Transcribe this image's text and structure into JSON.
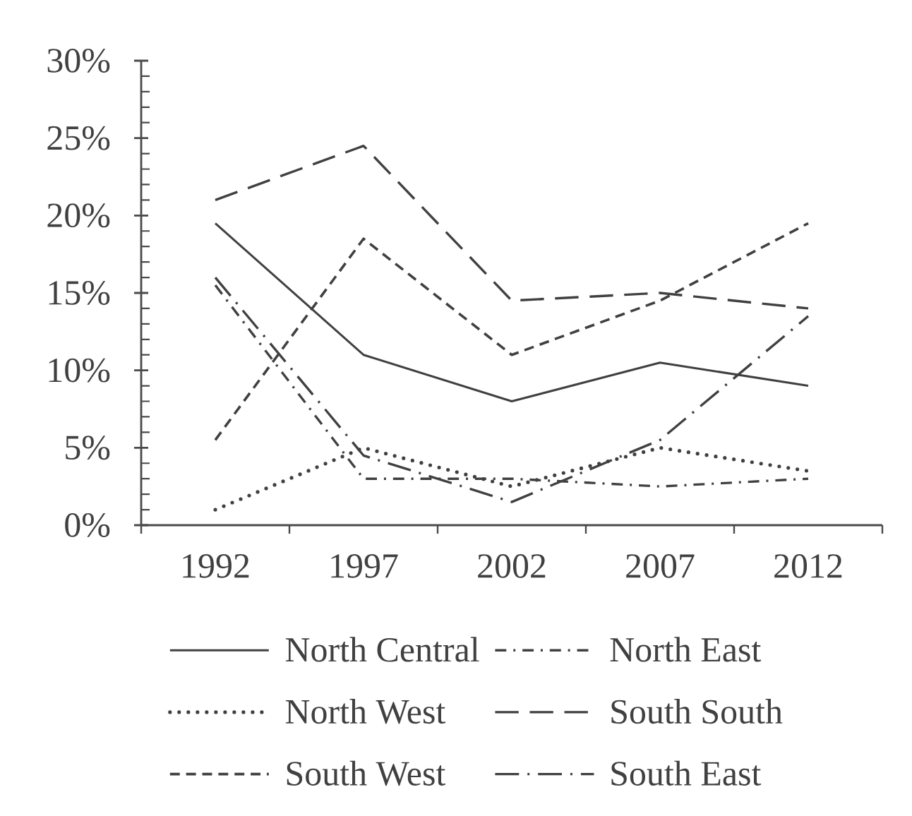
{
  "chart_data": {
    "type": "line",
    "categories": [
      "1992",
      "1997",
      "2002",
      "2007",
      "2012"
    ],
    "series": [
      {
        "name": "North Central",
        "color": "#404040",
        "line_style": "solid",
        "values": [
          19.5,
          11,
          8,
          10.5,
          9
        ]
      },
      {
        "name": "North East",
        "color": "#404040",
        "line_style": "dashdot",
        "values": [
          15.5,
          3,
          3,
          2.5,
          3
        ]
      },
      {
        "name": "North West",
        "color": "#404040",
        "line_style": "dotted",
        "values": [
          1,
          5,
          2.5,
          5,
          3.5
        ]
      },
      {
        "name": "South South",
        "color": "#404040",
        "line_style": "longdash",
        "values": [
          21,
          24.5,
          14.5,
          15,
          14
        ]
      },
      {
        "name": "South West",
        "color": "#404040",
        "line_style": "dashed",
        "values": [
          5.5,
          18.5,
          11,
          14.5,
          19.5
        ]
      },
      {
        "name": "South East",
        "color": "#404040",
        "line_style": "longdashdot",
        "values": [
          16,
          4.5,
          1.5,
          5.5,
          13.5
        ]
      }
    ],
    "ylim": [
      0,
      30
    ],
    "yticks": [
      {
        "value": 0,
        "label": "0%"
      },
      {
        "value": 1,
        "label": null
      },
      {
        "value": 2,
        "label": null
      },
      {
        "value": 3,
        "label": null
      },
      {
        "value": 4,
        "label": null
      },
      {
        "value": 5,
        "label": "5%"
      },
      {
        "value": 6,
        "label": null
      },
      {
        "value": 7,
        "label": null
      },
      {
        "value": 8,
        "label": null
      },
      {
        "value": 9,
        "label": null
      },
      {
        "value": 10,
        "label": "10%"
      },
      {
        "value": 11,
        "label": null
      },
      {
        "value": 12,
        "label": null
      },
      {
        "value": 13,
        "label": null
      },
      {
        "value": 14,
        "label": null
      },
      {
        "value": 15,
        "label": "15%"
      },
      {
        "value": 16,
        "label": null
      },
      {
        "value": 17,
        "label": null
      },
      {
        "value": 18,
        "label": null
      },
      {
        "value": 19,
        "label": null
      },
      {
        "value": 20,
        "label": "20%"
      },
      {
        "value": 21,
        "label": null
      },
      {
        "value": 22,
        "label": null
      },
      {
        "value": 23,
        "label": null
      },
      {
        "value": 24,
        "label": null
      },
      {
        "value": 25,
        "label": "25%"
      },
      {
        "value": 26,
        "label": null
      },
      {
        "value": 27,
        "label": null
      },
      {
        "value": 28,
        "label": null
      },
      {
        "value": 29,
        "label": null
      },
      {
        "value": 30,
        "label": "30%"
      }
    ],
    "legend": "bottom"
  }
}
